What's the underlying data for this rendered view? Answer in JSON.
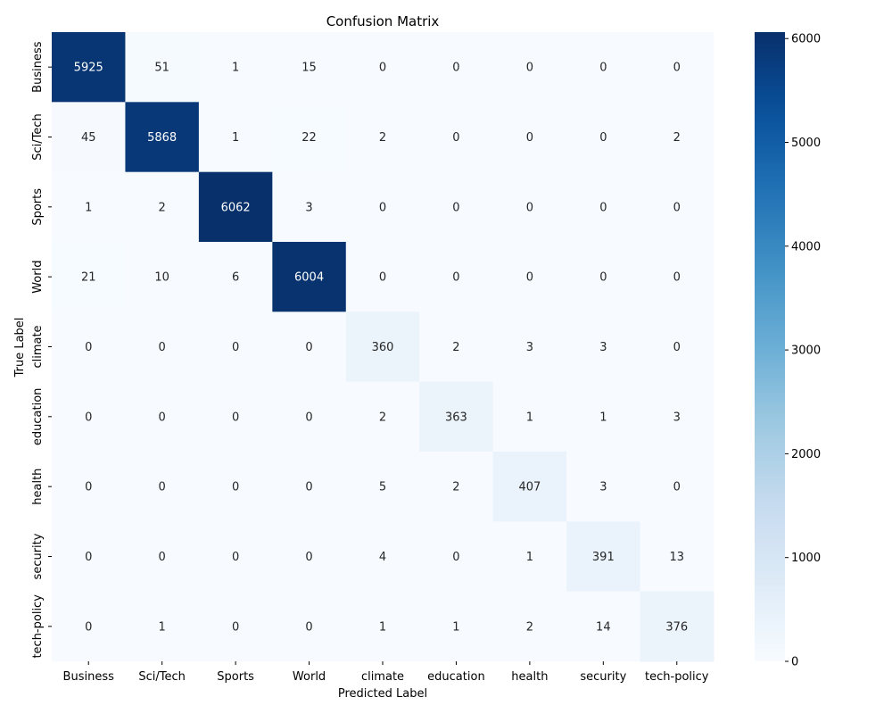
{
  "chart_data": {
    "type": "heatmap",
    "title": "Confusion Matrix",
    "xlabel": "Predicted Label",
    "ylabel": "True Label",
    "x_categories": [
      "Business",
      "Sci/Tech",
      "Sports",
      "World",
      "climate",
      "education",
      "health",
      "security",
      "tech-policy"
    ],
    "y_categories": [
      "Business",
      "Sci/Tech",
      "Sports",
      "World",
      "climate",
      "education",
      "health",
      "security",
      "tech-policy"
    ],
    "values": [
      [
        5925,
        51,
        1,
        15,
        0,
        0,
        0,
        0,
        0
      ],
      [
        45,
        5868,
        1,
        22,
        2,
        0,
        0,
        0,
        2
      ],
      [
        1,
        2,
        6062,
        3,
        0,
        0,
        0,
        0,
        0
      ],
      [
        21,
        10,
        6,
        6004,
        0,
        0,
        0,
        0,
        0
      ],
      [
        0,
        0,
        0,
        0,
        360,
        2,
        3,
        3,
        0
      ],
      [
        0,
        0,
        0,
        0,
        2,
        363,
        1,
        1,
        3
      ],
      [
        0,
        0,
        0,
        0,
        5,
        2,
        407,
        3,
        0
      ],
      [
        0,
        0,
        0,
        0,
        4,
        0,
        1,
        391,
        13
      ],
      [
        0,
        1,
        0,
        0,
        1,
        1,
        2,
        14,
        376
      ]
    ],
    "colorbar": {
      "colormap": "Blues",
      "range": [
        0,
        6062
      ],
      "ticks": [
        0,
        1000,
        2000,
        3000,
        4000,
        5000,
        6000
      ]
    }
  }
}
